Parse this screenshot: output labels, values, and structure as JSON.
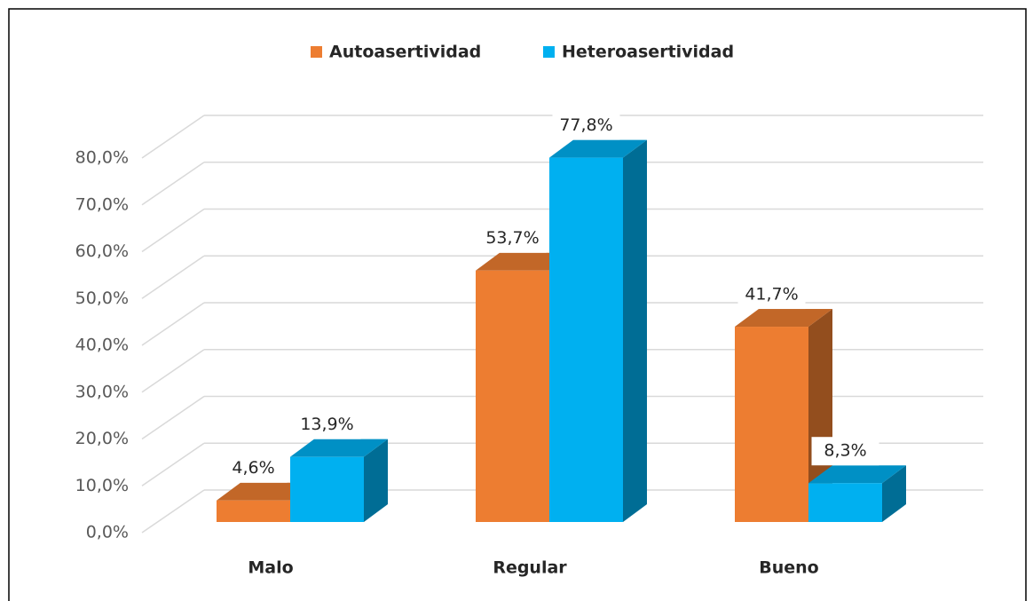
{
  "chart_data": {
    "type": "bar3d",
    "categories": [
      "Malo",
      "Regular",
      "Bueno"
    ],
    "series": [
      {
        "name": "Autoasertividad",
        "color": "#ED7D31",
        "values": [
          4.6,
          53.7,
          41.7
        ],
        "value_labels": [
          "4,6%",
          "53,7%",
          "41,7%"
        ]
      },
      {
        "name": "Heteroasertividad",
        "color": "#00B0F0",
        "values": [
          13.9,
          77.8,
          8.3
        ],
        "value_labels": [
          "13,9%",
          "77,8%",
          "8,3%"
        ]
      }
    ],
    "ylim": [
      0,
      80
    ],
    "yticks": [
      {
        "value": 0,
        "label": "0,0%"
      },
      {
        "value": 10,
        "label": "10,0%"
      },
      {
        "value": 20,
        "label": "20,0%"
      },
      {
        "value": 30,
        "label": "30,0%"
      },
      {
        "value": 40,
        "label": "40,0%"
      },
      {
        "value": 50,
        "label": "50,0%"
      },
      {
        "value": 60,
        "label": "60,0%"
      },
      {
        "value": 70,
        "label": "70,0%"
      },
      {
        "value": 80,
        "label": "80,0%"
      }
    ],
    "grid": true,
    "legend": "top"
  }
}
